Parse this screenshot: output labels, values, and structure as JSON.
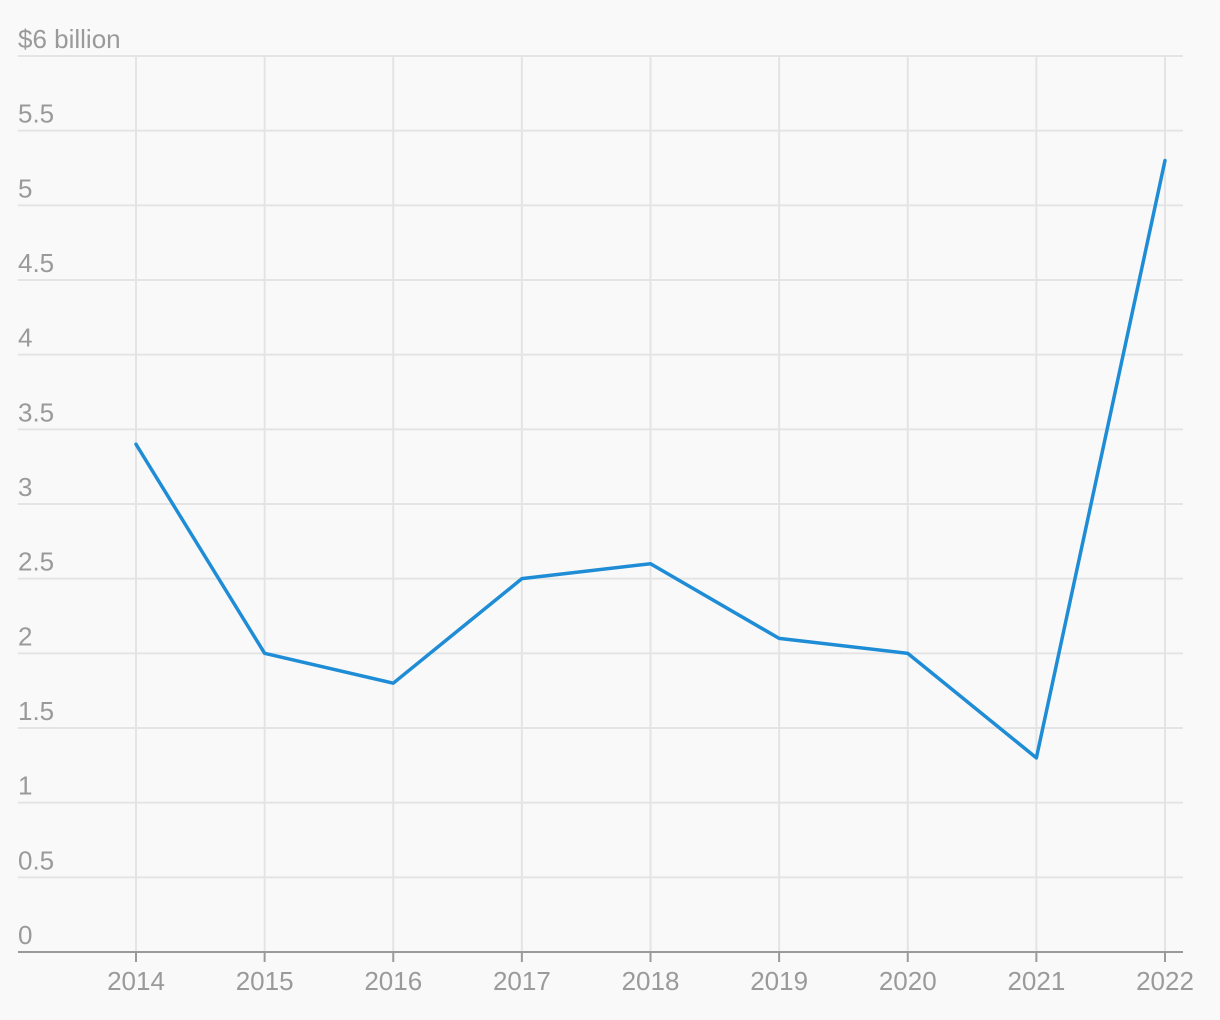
{
  "chart_data": {
    "type": "line",
    "x": [
      "2014",
      "2015",
      "2016",
      "2017",
      "2018",
      "2019",
      "2020",
      "2021",
      "2022"
    ],
    "series": [
      {
        "values": [
          3.4,
          2.0,
          1.8,
          2.5,
          2.6,
          2.1,
          2.0,
          1.3,
          5.3
        ],
        "color": "#1f8dd6"
      }
    ],
    "ylim": [
      0,
      6
    ],
    "yticks": [
      0,
      0.5,
      1,
      1.5,
      2,
      2.5,
      3,
      3.5,
      4,
      4.5,
      5,
      5.5,
      6
    ],
    "ytick_labels": [
      "0",
      "0.5",
      "1",
      "1.5",
      "2",
      "2.5",
      "3",
      "3.5",
      "4",
      "4.5",
      "5",
      "5.5",
      "$6 billion"
    ],
    "title": "",
    "xlabel": "",
    "ylabel": "",
    "grid": true,
    "legend": "none"
  }
}
